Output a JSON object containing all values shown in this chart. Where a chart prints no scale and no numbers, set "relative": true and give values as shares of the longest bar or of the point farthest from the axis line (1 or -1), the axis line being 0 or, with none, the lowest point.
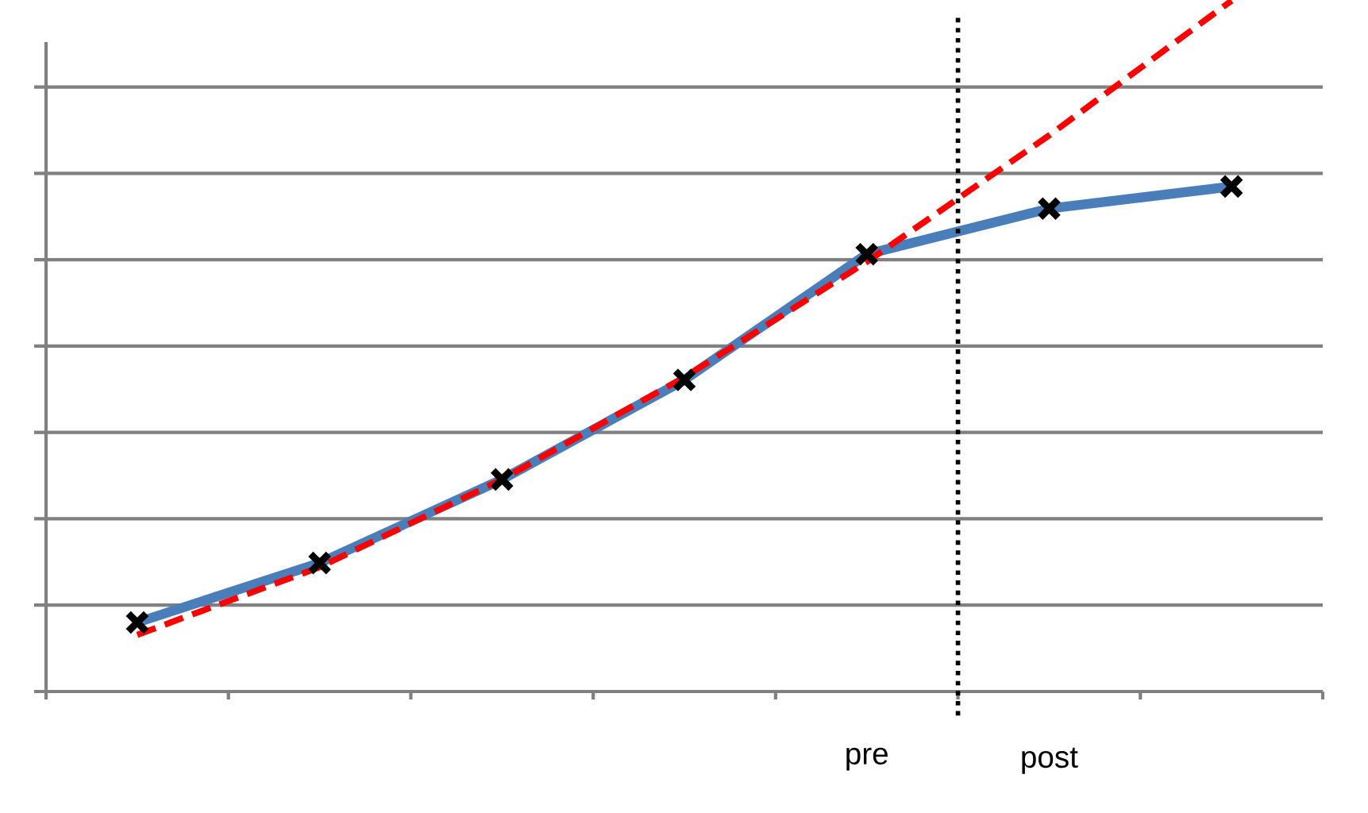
{
  "chart_data": {
    "type": "line",
    "relative": true,
    "categories": [
      null,
      null,
      null,
      null,
      "pre",
      "post",
      null
    ],
    "series": [
      {
        "color": "#4a7ebb",
        "marker": "cross",
        "line_style": "solid",
        "values": [
          0.1,
          0.186,
          0.307,
          0.451,
          0.633,
          0.699,
          0.731
        ]
      },
      {
        "type": "line",
        "color": "#ff0000",
        "marker": "none",
        "line_style": "dashed",
        "values": [
          0.082,
          0.18,
          0.307,
          0.455,
          0.622,
          0.805,
          1.0
        ]
      }
    ],
    "grid": "y"
  }
}
